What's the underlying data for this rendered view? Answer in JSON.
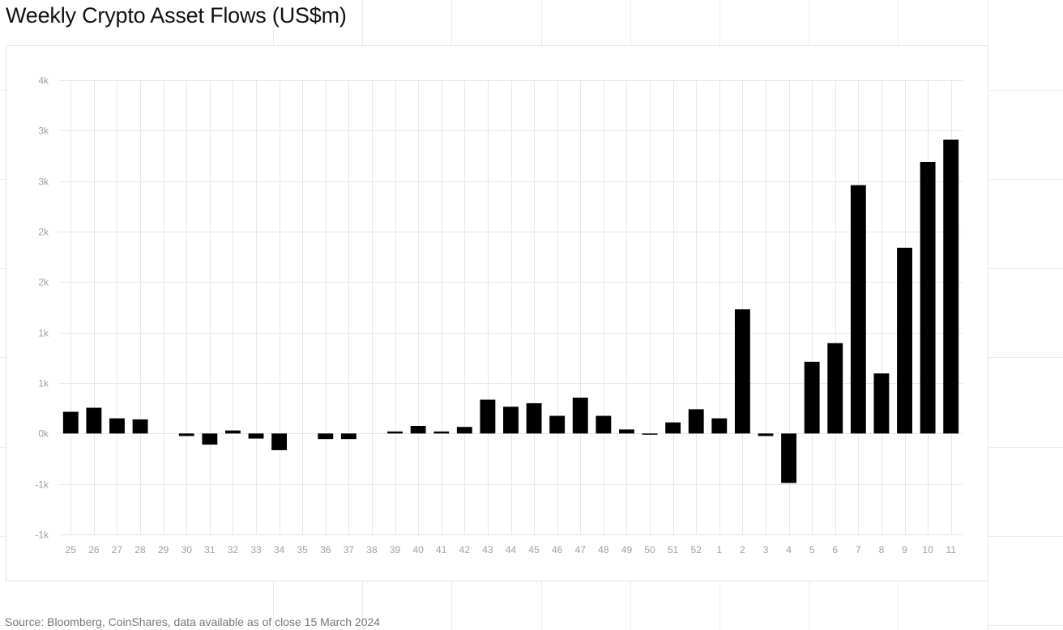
{
  "title": "Weekly Crypto Asset Flows (US$m)",
  "source": "Source: Bloomberg, CoinShares, data available as of close 15 March 2024",
  "colors": {
    "bar": "#000000",
    "grid": "#e8e8e8",
    "tick_text": "#a0a0a0"
  },
  "chart_data": {
    "type": "bar",
    "title": "Weekly Crypto Asset Flows (US$m)",
    "xlabel": "",
    "ylabel": "",
    "ylim": [
      -1000,
      3500
    ],
    "y_tick_values": [
      -1000,
      -500,
      0,
      500,
      1000,
      1500,
      2000,
      2500,
      3000,
      3500
    ],
    "y_tick_labels": [
      "-1k",
      "-1k",
      "0k",
      "1k",
      "1k",
      "2k",
      "2k",
      "3k",
      "3k",
      "4k"
    ],
    "grid": true,
    "categories": [
      "25",
      "26",
      "27",
      "28",
      "29",
      "30",
      "31",
      "32",
      "33",
      "34",
      "35",
      "36",
      "37",
      "38",
      "39",
      "40",
      "41",
      "42",
      "43",
      "44",
      "45",
      "46",
      "47",
      "48",
      "49",
      "50",
      "51",
      "52",
      "1",
      "2",
      "3",
      "4",
      "5",
      "6",
      "7",
      "8",
      "9",
      "10",
      "11"
    ],
    "values": [
      215,
      255,
      150,
      140,
      0,
      -25,
      -110,
      30,
      -50,
      -165,
      0,
      -55,
      -55,
      0,
      20,
      75,
      20,
      65,
      335,
      265,
      300,
      175,
      355,
      175,
      40,
      -10,
      110,
      240,
      150,
      1230,
      -25,
      -490,
      710,
      895,
      2460,
      595,
      1840,
      2690,
      2910
    ]
  }
}
